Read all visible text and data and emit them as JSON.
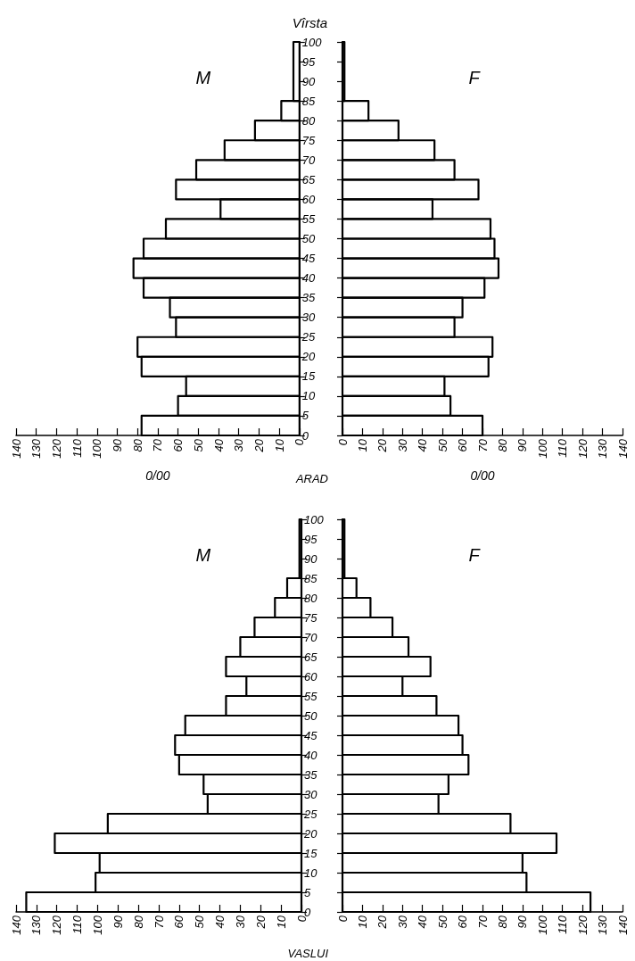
{
  "chart_data": [
    {
      "type": "histogram",
      "orientation": "horizontal",
      "title": "M",
      "xlabel": "0/00",
      "ylabel": "Vîrsta",
      "annotations": [
        "ARAD"
      ],
      "color": "#000000",
      "bins": [
        0,
        5,
        10,
        15,
        20,
        25,
        30,
        35,
        40,
        45,
        50,
        55,
        60,
        65,
        70,
        75,
        80,
        85,
        100
      ],
      "values": [
        78,
        60,
        56,
        78,
        80,
        61,
        64,
        77,
        82,
        77,
        66,
        39,
        61,
        51,
        37,
        22,
        9,
        3
      ],
      "xlim": [
        140,
        0
      ],
      "xticks": [
        140,
        130,
        120,
        110,
        100,
        90,
        80,
        70,
        60,
        50,
        40,
        30,
        20,
        10,
        0
      ],
      "ylim": [
        0,
        100
      ],
      "yticks": [
        0,
        5,
        10,
        15,
        20,
        25,
        30,
        35,
        40,
        45,
        50,
        55,
        60,
        65,
        70,
        75,
        80,
        85,
        90,
        95,
        100
      ]
    },
    {
      "type": "histogram",
      "orientation": "horizontal",
      "title": "F",
      "xlabel": "0/00",
      "color": "#000000",
      "bins": [
        0,
        5,
        10,
        15,
        20,
        25,
        30,
        35,
        40,
        45,
        50,
        55,
        60,
        65,
        70,
        75,
        80,
        85,
        100
      ],
      "values": [
        70,
        54,
        51,
        73,
        75,
        56,
        60,
        71,
        78,
        76,
        74,
        45,
        68,
        56,
        46,
        28,
        13,
        1
      ],
      "xlim": [
        0,
        140
      ],
      "xticks": [
        0,
        10,
        20,
        30,
        40,
        50,
        60,
        70,
        80,
        90,
        100,
        110,
        120,
        130,
        140
      ],
      "ylim": [
        0,
        100
      ],
      "yticks": [
        0,
        5,
        10,
        15,
        20,
        25,
        30,
        35,
        40,
        45,
        50,
        55,
        60,
        65,
        70,
        75,
        80,
        85,
        90,
        95,
        100
      ],
      "tick_labels": "x"
    },
    {
      "type": "histogram",
      "orientation": "horizontal",
      "title": "M",
      "annotations": [
        "VASLUI"
      ],
      "color": "#000000",
      "bins": [
        0,
        5,
        10,
        15,
        20,
        25,
        30,
        35,
        40,
        45,
        50,
        55,
        60,
        65,
        70,
        75,
        80,
        85,
        100
      ],
      "values": [
        135,
        101,
        99,
        121,
        95,
        46,
        48,
        60,
        62,
        57,
        37,
        27,
        37,
        30,
        23,
        13,
        7,
        1
      ],
      "xlim": [
        140,
        0
      ],
      "xticks": [
        140,
        130,
        120,
        110,
        100,
        90,
        80,
        70,
        60,
        50,
        40,
        30,
        20,
        10,
        0
      ],
      "ylim": [
        0,
        100
      ],
      "yticks": [
        0,
        5,
        10,
        15,
        20,
        25,
        30,
        35,
        40,
        45,
        50,
        55,
        60,
        65,
        70,
        75,
        80,
        85,
        90,
        95,
        100
      ]
    },
    {
      "type": "histogram",
      "orientation": "horizontal",
      "title": "F",
      "color": "#000000",
      "bins": [
        0,
        5,
        10,
        15,
        20,
        25,
        30,
        35,
        40,
        45,
        50,
        55,
        60,
        65,
        70,
        75,
        80,
        85,
        100
      ],
      "values": [
        124,
        92,
        90,
        107,
        84,
        48,
        53,
        63,
        60,
        58,
        47,
        30,
        44,
        33,
        25,
        14,
        7,
        1
      ],
      "xlim": [
        0,
        140
      ],
      "xticks": [
        0,
        10,
        20,
        30,
        40,
        50,
        60,
        70,
        80,
        90,
        100,
        110,
        120,
        130,
        140
      ],
      "ylim": [
        0,
        100
      ],
      "yticks": [
        0,
        5,
        10,
        15,
        20,
        25,
        30,
        35,
        40,
        45,
        50,
        55,
        60,
        65,
        70,
        75,
        80,
        85,
        90,
        95,
        100
      ],
      "tick_labels": "x"
    }
  ]
}
